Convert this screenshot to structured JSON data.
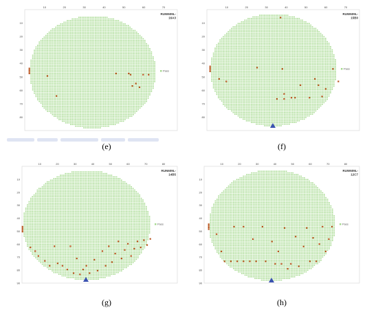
{
  "chart_data": [
    {
      "type": "scatter",
      "panel_label": "(e)",
      "wafer_id": [
        "RUW609L-",
        "16A3"
      ],
      "legend": "Pass",
      "x_ticks": [
        10,
        20,
        30,
        40,
        50,
        60,
        70
      ],
      "y_ticks": [
        10,
        20,
        30,
        40,
        50,
        60,
        70,
        80
      ],
      "xlim": [
        0,
        70
      ],
      "ylim": [
        0,
        90
      ],
      "notch": false,
      "fail_bins": [
        {
          "x": 0,
          "y": 42,
          "rows": 4
        },
        {
          "x": 10,
          "y": 48
        },
        {
          "x": 15,
          "y": 64
        },
        {
          "x": 48,
          "y": 46
        },
        {
          "x": 55,
          "y": 46
        },
        {
          "x": 56,
          "y": 47
        },
        {
          "x": 57,
          "y": 56
        },
        {
          "x": 59,
          "y": 54
        },
        {
          "x": 61,
          "y": 57
        },
        {
          "x": 63,
          "y": 47
        },
        {
          "x": 66,
          "y": 47
        }
      ]
    },
    {
      "type": "scatter",
      "panel_label": "(f)",
      "wafer_id": [
        "RUW609L-",
        "15B0"
      ],
      "legend": "Pass",
      "x_ticks": [
        10,
        20,
        30,
        40,
        50,
        60,
        70
      ],
      "y_ticks": [
        10,
        20,
        30,
        40,
        50,
        60,
        70,
        80
      ],
      "xlim": [
        0,
        70
      ],
      "ylim": [
        0,
        90
      ],
      "notch": true,
      "fail_bins": [
        {
          "x": 0,
          "y": 42,
          "rows": 4
        },
        {
          "x": 5,
          "y": 52
        },
        {
          "x": 9,
          "y": 54
        },
        {
          "x": 26,
          "y": 43
        },
        {
          "x": 37,
          "y": 68
        },
        {
          "x": 39,
          "y": 3
        },
        {
          "x": 40,
          "y": 44
        },
        {
          "x": 41,
          "y": 68
        },
        {
          "x": 41,
          "y": 64
        },
        {
          "x": 45,
          "y": 67
        },
        {
          "x": 47,
          "y": 67
        },
        {
          "x": 50,
          "y": 57
        },
        {
          "x": 55,
          "y": 67
        },
        {
          "x": 58,
          "y": 52
        },
        {
          "x": 60,
          "y": 57
        },
        {
          "x": 62,
          "y": 66
        },
        {
          "x": 64,
          "y": 60
        },
        {
          "x": 68,
          "y": 44
        },
        {
          "x": 71,
          "y": 54
        }
      ]
    },
    {
      "type": "scatter",
      "panel_label": "(g)",
      "wafer_id": [
        "RUN609L-",
        "14B5"
      ],
      "legend": "Pass",
      "x_ticks": [
        10,
        20,
        30,
        40,
        50,
        60,
        70,
        80
      ],
      "y_ticks": [
        10,
        20,
        30,
        40,
        50,
        60,
        70,
        80,
        90
      ],
      "xlim": [
        0,
        80
      ],
      "ylim": [
        0,
        90
      ],
      "notch": true,
      "fail_bins": [
        {
          "x": 0,
          "y": 46,
          "rows": 4
        },
        {
          "x": 5,
          "y": 63
        },
        {
          "x": 8,
          "y": 66
        },
        {
          "x": 10,
          "y": 70
        },
        {
          "x": 14,
          "y": 74
        },
        {
          "x": 17,
          "y": 78
        },
        {
          "x": 20,
          "y": 62
        },
        {
          "x": 22,
          "y": 76
        },
        {
          "x": 25,
          "y": 78
        },
        {
          "x": 28,
          "y": 81
        },
        {
          "x": 30,
          "y": 62
        },
        {
          "x": 32,
          "y": 84
        },
        {
          "x": 34,
          "y": 72
        },
        {
          "x": 36,
          "y": 85
        },
        {
          "x": 38,
          "y": 81
        },
        {
          "x": 40,
          "y": 78
        },
        {
          "x": 42,
          "y": 84
        },
        {
          "x": 45,
          "y": 73
        },
        {
          "x": 47,
          "y": 82
        },
        {
          "x": 50,
          "y": 66
        },
        {
          "x": 52,
          "y": 78
        },
        {
          "x": 54,
          "y": 62
        },
        {
          "x": 56,
          "y": 75
        },
        {
          "x": 58,
          "y": 68
        },
        {
          "x": 60,
          "y": 58
        },
        {
          "x": 62,
          "y": 72
        },
        {
          "x": 64,
          "y": 65
        },
        {
          "x": 66,
          "y": 60
        },
        {
          "x": 68,
          "y": 70
        },
        {
          "x": 70,
          "y": 64
        },
        {
          "x": 72,
          "y": 58
        },
        {
          "x": 74,
          "y": 63
        },
        {
          "x": 76,
          "y": 57
        },
        {
          "x": 78,
          "y": 61
        },
        {
          "x": 80,
          "y": 56
        }
      ]
    },
    {
      "type": "scatter",
      "panel_label": "(h)",
      "wafer_id": [
        "RUW609L-",
        "12C7"
      ],
      "legend": "Pass",
      "x_ticks": [
        10,
        20,
        30,
        40,
        50,
        60,
        70,
        80
      ],
      "y_ticks": [
        10,
        20,
        30,
        40,
        50,
        60,
        70,
        80,
        90
      ],
      "xlim": [
        0,
        80
      ],
      "ylim": [
        0,
        90
      ],
      "notch": true,
      "fail_bins": [
        {
          "x": 0,
          "y": 44,
          "rows": 4
        },
        {
          "x": 5,
          "y": 52
        },
        {
          "x": 8,
          "y": 66
        },
        {
          "x": 10,
          "y": 74
        },
        {
          "x": 14,
          "y": 74
        },
        {
          "x": 18,
          "y": 74
        },
        {
          "x": 22,
          "y": 74
        },
        {
          "x": 26,
          "y": 74
        },
        {
          "x": 30,
          "y": 74
        },
        {
          "x": 16,
          "y": 46
        },
        {
          "x": 22,
          "y": 46
        },
        {
          "x": 28,
          "y": 56
        },
        {
          "x": 34,
          "y": 46
        },
        {
          "x": 36,
          "y": 74
        },
        {
          "x": 40,
          "y": 58
        },
        {
          "x": 42,
          "y": 76
        },
        {
          "x": 44,
          "y": 66
        },
        {
          "x": 46,
          "y": 76
        },
        {
          "x": 48,
          "y": 47
        },
        {
          "x": 50,
          "y": 80
        },
        {
          "x": 52,
          "y": 76
        },
        {
          "x": 55,
          "y": 54
        },
        {
          "x": 57,
          "y": 78
        },
        {
          "x": 60,
          "y": 62
        },
        {
          "x": 62,
          "y": 47
        },
        {
          "x": 64,
          "y": 74
        },
        {
          "x": 66,
          "y": 55
        },
        {
          "x": 68,
          "y": 74
        },
        {
          "x": 70,
          "y": 60
        },
        {
          "x": 72,
          "y": 46
        },
        {
          "x": 74,
          "y": 66
        },
        {
          "x": 76,
          "y": 56
        },
        {
          "x": 78,
          "y": 46
        }
      ]
    }
  ]
}
